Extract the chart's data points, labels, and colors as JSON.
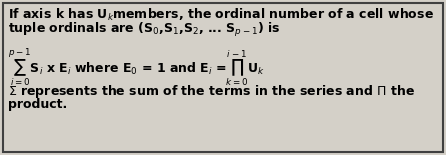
{
  "background_color": "#d4d0c8",
  "box_color": "#d4d0c8",
  "border_color": "#404040",
  "text_color": "#000000",
  "line1": "If axis k has U$_k$members, the ordinal number of a cell whose",
  "line2": "tuple ordinals are (S$_0$,S$_1$,S$_2$, ... S$_{p-1}$) is",
  "formula": "$\\sum_{i=0}^{p-1}$S$_i$ x E$_i$ where E$_0$ = 1 and E$_i$ =$\\prod_{k=0}^{i-1}$U$_k$",
  "note1": "$\\Sigma$ represents the sum of the terms in the series and $\\Pi$ the",
  "note2": "product.",
  "fontsize": 9,
  "bold_font": "DejaVu Sans"
}
